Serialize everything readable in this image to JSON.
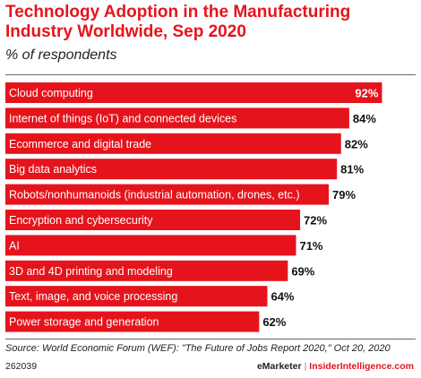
{
  "chart_data": {
    "type": "bar",
    "orientation": "horizontal",
    "title": "Technology Adoption in the Manufacturing Industry Worldwide, Sep 2020",
    "subtitle": "% of respondents",
    "categories": [
      "Cloud computing",
      "Internet of things (IoT) and connected devices",
      "Ecommerce and digital trade",
      "Big data analytics",
      "Robots/nonhumanoids (industrial automation, drones, etc.)",
      "Encryption and cybersecurity",
      "AI",
      "3D and 4D printing and modeling",
      "Text, image, and voice processing",
      "Power storage and generation"
    ],
    "values": [
      92,
      84,
      82,
      81,
      79,
      72,
      71,
      69,
      64,
      62
    ],
    "value_suffix": "%",
    "xlim": [
      0,
      100
    ],
    "grid": false,
    "legend": "none",
    "bar_color": "#e5141c"
  },
  "source": "Source: World Economic Forum (WEF): \"The Future of Jobs Report 2020,\" Oct 20, 2020",
  "footer": {
    "chart_id": "262039",
    "brand": "eMarketer",
    "separator": "|",
    "brand2": "InsiderIntelligence.com"
  },
  "colors": {
    "accent": "#e5141c",
    "text": "#222222"
  }
}
